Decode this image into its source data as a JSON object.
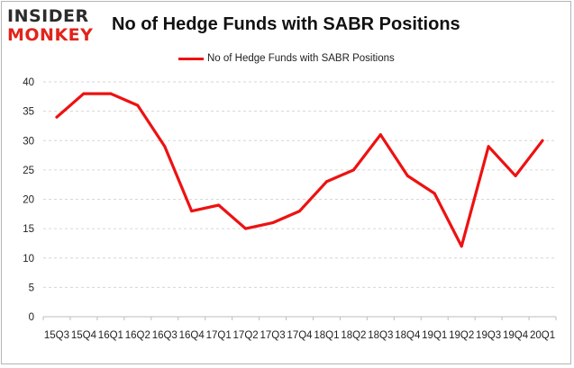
{
  "logo": {
    "top_text": "INSIDER",
    "bottom_text": "MONKEY"
  },
  "chart_data": {
    "type": "line",
    "title": "No of Hedge Funds with SABR Positions",
    "xlabel": "",
    "ylabel": "",
    "categories": [
      "15Q3",
      "15Q4",
      "16Q1",
      "16Q2",
      "16Q3",
      "16Q4",
      "17Q1",
      "17Q2",
      "17Q3",
      "17Q4",
      "18Q1",
      "18Q2",
      "18Q3",
      "18Q4",
      "19Q1",
      "19Q2",
      "19Q3",
      "19Q4",
      "20Q1"
    ],
    "series": [
      {
        "name": "No of Hedge Funds with SABR Positions",
        "color": "#ee1111",
        "values": [
          34,
          38,
          38,
          36,
          29,
          18,
          19,
          15,
          16,
          18,
          23,
          25,
          31,
          24,
          21,
          12,
          29,
          24,
          30
        ]
      }
    ],
    "ylim": [
      0,
      40
    ],
    "yticks": [
      0,
      5,
      10,
      15,
      20,
      25,
      30,
      35,
      40
    ],
    "grid": "horizontal",
    "legend_position": "top-center"
  }
}
